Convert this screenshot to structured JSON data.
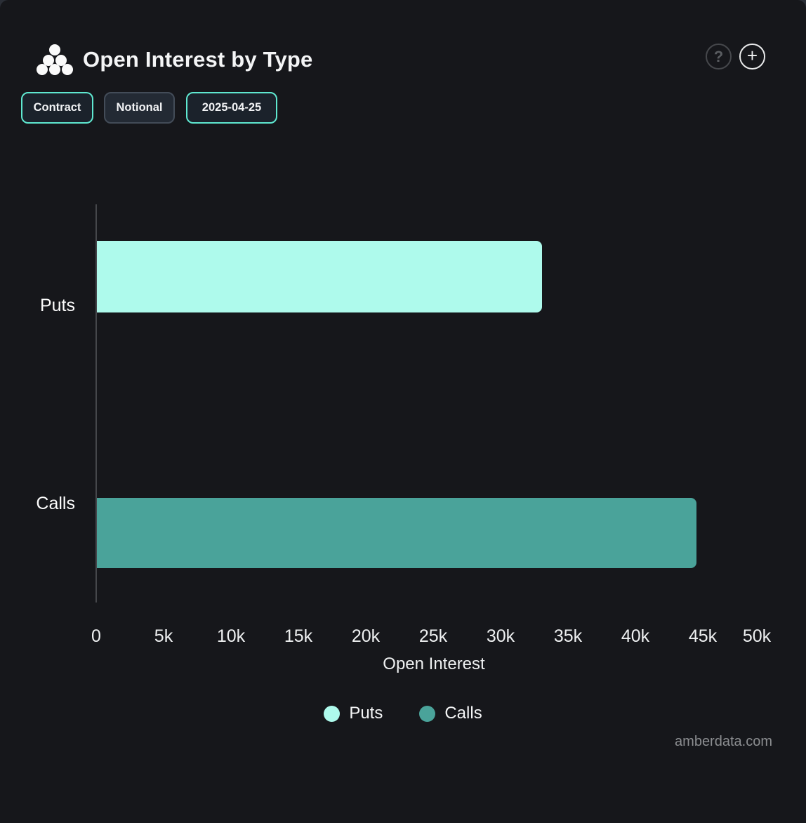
{
  "header": {
    "title": "Open Interest by Type"
  },
  "icons": {
    "logo": "amberdata-dots-logo",
    "help": "?",
    "add": "+"
  },
  "toolbar": {
    "buttons": [
      {
        "label": "Contract",
        "active": true
      },
      {
        "label": "Notional",
        "active": false
      },
      {
        "label": "2025-04-25",
        "active": true
      }
    ]
  },
  "chart_data": {
    "type": "bar",
    "orientation": "horizontal",
    "title": "Open Interest by Type",
    "categories": [
      "Puts",
      "Calls"
    ],
    "values": [
      33000,
      44500
    ],
    "series_colors": {
      "Puts": "#AEFAEC",
      "Calls": "#4AA39A"
    },
    "xlabel": "Open Interest",
    "ylabel": "",
    "xlim": [
      0,
      50000
    ],
    "x_ticks": [
      "0",
      "5k",
      "10k",
      "15k",
      "20k",
      "25k",
      "30k",
      "35k",
      "40k",
      "45k",
      "50k"
    ],
    "grid": false,
    "legend": [
      {
        "label": "Puts",
        "color": "#AEFAEC"
      },
      {
        "label": "Calls",
        "color": "#4AA39A"
      }
    ],
    "legend_position": "bottom"
  },
  "watermark": "amberdata.com",
  "colors": {
    "background": "#16171B",
    "accent": "#5FE8D0",
    "axis_line": "#45474B",
    "text": "#F4F5F6",
    "muted_text": "#8C8E91"
  }
}
